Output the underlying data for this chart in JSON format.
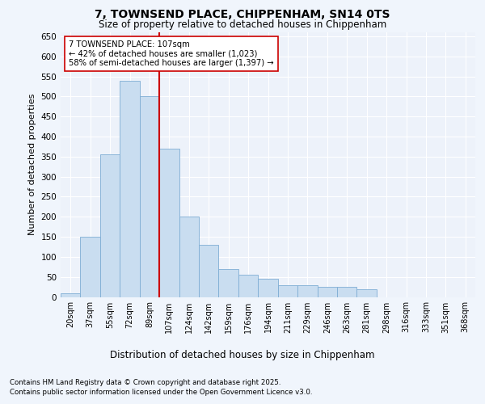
{
  "title_line1": "7, TOWNSEND PLACE, CHIPPENHAM, SN14 0TS",
  "title_line2": "Size of property relative to detached houses in Chippenham",
  "xlabel": "Distribution of detached houses by size in Chippenham",
  "ylabel": "Number of detached properties",
  "categories": [
    "20sqm",
    "37sqm",
    "55sqm",
    "72sqm",
    "89sqm",
    "107sqm",
    "124sqm",
    "142sqm",
    "159sqm",
    "176sqm",
    "194sqm",
    "211sqm",
    "229sqm",
    "246sqm",
    "263sqm",
    "281sqm",
    "298sqm",
    "316sqm",
    "333sqm",
    "351sqm",
    "368sqm"
  ],
  "values": [
    10,
    150,
    355,
    540,
    500,
    370,
    200,
    130,
    70,
    55,
    45,
    30,
    30,
    25,
    25,
    20,
    0,
    0,
    0,
    0,
    0
  ],
  "bar_color": "#c9ddf0",
  "bar_edge_color": "#7eadd4",
  "vline_x_index": 5,
  "vline_color": "#cc0000",
  "annotation_text": "7 TOWNSEND PLACE: 107sqm\n← 42% of detached houses are smaller (1,023)\n58% of semi-detached houses are larger (1,397) →",
  "annotation_box_color": "#ffffff",
  "annotation_box_edge_color": "#cc0000",
  "ylim": [
    0,
    660
  ],
  "yticks": [
    0,
    50,
    100,
    150,
    200,
    250,
    300,
    350,
    400,
    450,
    500,
    550,
    600,
    650
  ],
  "footer_line1": "Contains HM Land Registry data © Crown copyright and database right 2025.",
  "footer_line2": "Contains public sector information licensed under the Open Government Licence v3.0.",
  "bg_color": "#f0f5fc",
  "plot_bg_color": "#edf2fa"
}
